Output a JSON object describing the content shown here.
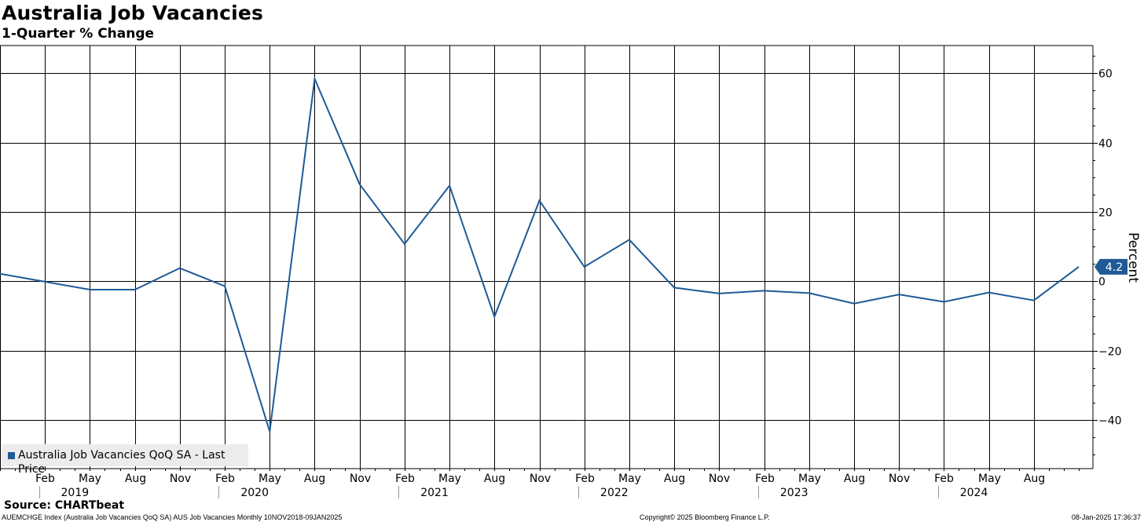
{
  "header": {
    "title": "Australia Job Vacancies",
    "subtitle": "1-Quarter % Change"
  },
  "legend": {
    "label": "Australia Job Vacancies QoQ SA - Last Price"
  },
  "footer": {
    "source": "Source: CHARTbeat",
    "ticker_info": "AUEMCHGE Index (Australia Job Vacancies QoQ SA) AUS Job Vacancies  Monthly 10NOV2018-09JAN2025",
    "copyright": "Copyright© 2025 Bloomberg Finance L.P.",
    "timestamp": "08-Jan-2025 17:36:37"
  },
  "colors": {
    "series": "#1f5a96",
    "grid": "#000000",
    "background": "#ffffff"
  },
  "chart_data": {
    "type": "line",
    "title": "Australia Job Vacancies",
    "subtitle": "1-Quarter % Change",
    "ylabel": "Percent",
    "ylim": [
      -54,
      68
    ],
    "y_ticks": [
      60,
      40,
      20,
      0,
      -20,
      -40
    ],
    "y_axis_side": "right",
    "grid": true,
    "legend_position": "bottom-left",
    "last_value_label": "4.2",
    "x_tick_labels": [
      "Feb",
      "May",
      "Aug",
      "Nov",
      "Feb",
      "May",
      "Aug",
      "Nov",
      "Feb",
      "May",
      "Aug",
      "Nov",
      "Feb",
      "May",
      "Aug",
      "Nov",
      "Feb",
      "May",
      "Aug",
      "Nov",
      "Feb",
      "May",
      "Aug"
    ],
    "x_year_labels": [
      {
        "year": "2019",
        "month_index": 5
      },
      {
        "year": "2020",
        "month_index": 17
      },
      {
        "year": "2021",
        "month_index": 29
      },
      {
        "year": "2022",
        "month_index": 41
      },
      {
        "year": "2023",
        "month_index": 53
      },
      {
        "year": "2024",
        "month_index": 65
      }
    ],
    "series": [
      {
        "name": "Australia Job Vacancies QoQ SA - Last Price",
        "x": [
          "Nov 2018",
          "Feb 2019",
          "May 2019",
          "Aug 2019",
          "Nov 2019",
          "Feb 2020",
          "May 2020",
          "Aug 2020",
          "Nov 2020",
          "Feb 2021",
          "May 2021",
          "Aug 2021",
          "Nov 2021",
          "Feb 2022",
          "May 2022",
          "Aug 2022",
          "Nov 2022",
          "Feb 2023",
          "May 2023",
          "Aug 2023",
          "Nov 2023",
          "Feb 2024",
          "May 2024",
          "Aug 2024",
          "Nov 2024"
        ],
        "values": [
          2.2,
          -0.1,
          -2.4,
          -2.4,
          3.8,
          -1.4,
          -43.3,
          58.4,
          28.0,
          10.8,
          27.6,
          -10.2,
          23.3,
          4.2,
          12.0,
          -1.8,
          -3.5,
          -2.7,
          -3.4,
          -6.4,
          -3.8,
          -5.9,
          -3.2,
          -5.5,
          4.2
        ]
      }
    ]
  }
}
